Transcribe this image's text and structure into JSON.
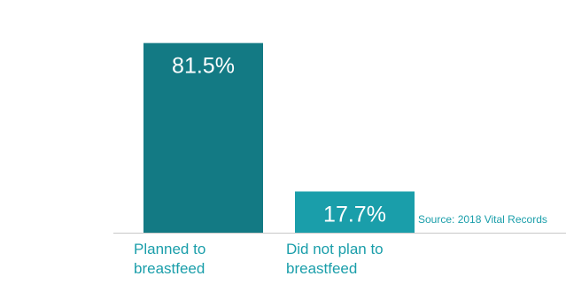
{
  "chart_data": {
    "type": "bar",
    "categories": [
      [
        "Planned to",
        "breastfeed"
      ],
      [
        "Did not plan to",
        "breastfeed"
      ]
    ],
    "values": [
      81.5,
      17.7
    ],
    "value_labels": [
      "81.5%",
      "17.7%"
    ],
    "ylim": [
      0,
      100
    ],
    "grid": false,
    "source": "Source: 2018 Vital Records",
    "colors": {
      "bars": [
        "#137a84",
        "#1a9eaa"
      ],
      "value_label_text": "#ffffff",
      "category_text": "#1a9eaa",
      "source_text": "#1a9eaa",
      "baseline": "#c8c8c8"
    }
  }
}
